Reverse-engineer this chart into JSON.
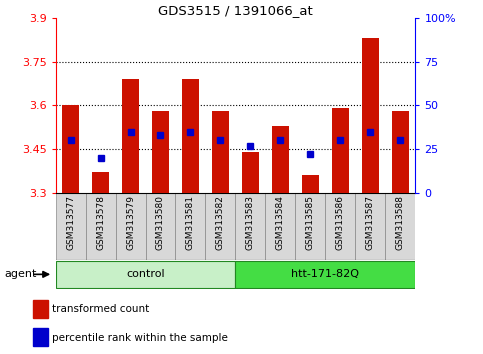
{
  "title": "GDS3515 / 1391066_at",
  "samples": [
    "GSM313577",
    "GSM313578",
    "GSM313579",
    "GSM313580",
    "GSM313581",
    "GSM313582",
    "GSM313583",
    "GSM313584",
    "GSM313585",
    "GSM313586",
    "GSM313587",
    "GSM313588"
  ],
  "bar_values": [
    3.6,
    3.37,
    3.69,
    3.58,
    3.69,
    3.58,
    3.44,
    3.53,
    3.36,
    3.59,
    3.83,
    3.58
  ],
  "bar_base": 3.3,
  "percentile_ranks": [
    30,
    20,
    35,
    33,
    35,
    30,
    27,
    30,
    22,
    30,
    35,
    30
  ],
  "groups": [
    {
      "label": "control",
      "start": 0,
      "end": 5,
      "color": "#c8f0c8"
    },
    {
      "label": "htt-171-82Q",
      "start": 6,
      "end": 11,
      "color": "#44dd44"
    }
  ],
  "ylim_left": [
    3.3,
    3.9
  ],
  "ylim_right": [
    0,
    100
  ],
  "yticks_left": [
    3.3,
    3.45,
    3.6,
    3.75,
    3.9
  ],
  "yticks_right": [
    0,
    25,
    50,
    75,
    100
  ],
  "ytick_labels_left": [
    "3.3",
    "3.45",
    "3.6",
    "3.75",
    "3.9"
  ],
  "ytick_labels_right": [
    "0",
    "25",
    "50",
    "75",
    "100%"
  ],
  "bar_color": "#cc1100",
  "blue_color": "#0000cc",
  "agent_label": "agent",
  "legend_items": [
    {
      "color": "#cc1100",
      "label": "transformed count"
    },
    {
      "color": "#0000cc",
      "label": "percentile rank within the sample"
    }
  ],
  "grid_yticks": [
    3.45,
    3.6,
    3.75
  ],
  "sample_bg_color": "#d8d8d8",
  "sample_border_color": "#888888"
}
